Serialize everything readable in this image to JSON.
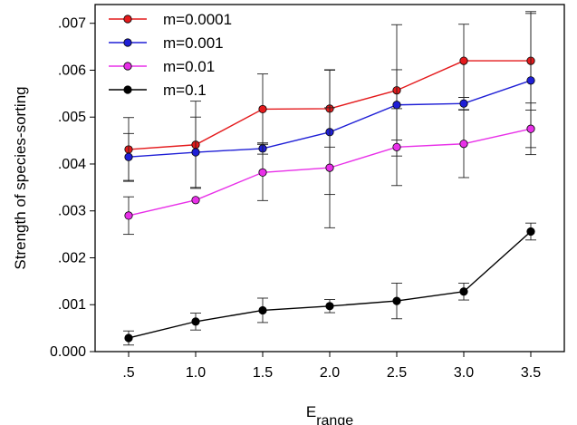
{
  "chart_data": {
    "type": "line",
    "title": "",
    "xlabel_main": "E",
    "xlabel_sub": "range",
    "ylabel": "Strength of species-sorting",
    "x": [
      0.5,
      1.0,
      1.5,
      2.0,
      2.5,
      3.0,
      3.5
    ],
    "xticks": [
      ".5",
      "1.0",
      "1.5",
      "2.0",
      "2.5",
      "3.0",
      "3.5"
    ],
    "xlim": [
      0.25,
      3.75
    ],
    "yticks": [
      0.0,
      0.001,
      0.002,
      0.003,
      0.004,
      0.005,
      0.006,
      0.007
    ],
    "yticklabels": [
      "0.000",
      ".001",
      ".002",
      ".003",
      ".004",
      ".005",
      ".006",
      ".007"
    ],
    "ylim": [
      0.0,
      0.0074
    ],
    "legend_position": "top-left",
    "error_bars": true,
    "series": [
      {
        "name": "m=0.0001",
        "color": "#e41a1c",
        "values": [
          0.00431,
          0.00441,
          0.00517,
          0.00518,
          0.00557,
          0.0062,
          0.0062
        ],
        "errors": [
          0.00068,
          0.00093,
          0.00075,
          0.00082,
          0.0014,
          0.00078,
          0.00105
        ]
      },
      {
        "name": "m=0.001",
        "color": "#1f1fd6",
        "values": [
          0.00415,
          0.00425,
          0.00433,
          0.00468,
          0.00526,
          0.00529,
          0.00578
        ],
        "errors": [
          0.0005,
          0.00075,
          0.00012,
          0.00133,
          0.00075,
          0.00013,
          0.00143
        ]
      },
      {
        "name": "m=0.01",
        "color": "#e830e8",
        "values": [
          0.0029,
          0.00323,
          0.00382,
          0.00392,
          0.00436,
          0.00443,
          0.00475
        ],
        "errors": [
          0.0004,
          0.0,
          0.0006,
          0.00128,
          0.00082,
          0.00072,
          0.00055
        ]
      },
      {
        "name": "m=0.1",
        "color": "#000000",
        "values": [
          0.00029,
          0.00064,
          0.00088,
          0.00097,
          0.00108,
          0.00128,
          0.00256
        ],
        "errors": [
          0.00015,
          0.00018,
          0.00026,
          0.00014,
          0.00038,
          0.00018,
          0.00018
        ]
      }
    ]
  }
}
